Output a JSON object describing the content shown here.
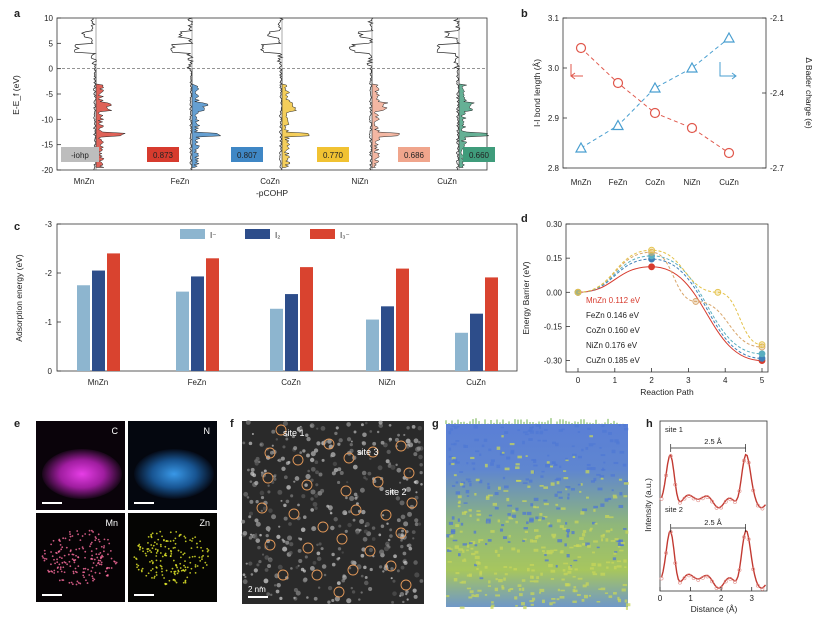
{
  "panel_labels": {
    "a": "a",
    "b": "b",
    "c": "c",
    "d": "d",
    "e": "e",
    "f": "f",
    "g": "g",
    "h": "h"
  },
  "colors": {
    "MnZn": "#d73b2e",
    "FeZn": "#3f87c5",
    "CoZn": "#f1c232",
    "NiZn": "#f0a58c",
    "CuZn": "#3f9c7b",
    "iohp_box": "#bdbdbd",
    "bond": "#e0574b",
    "bader": "#4a9fd0",
    "I_minus": "#8db5cf",
    "I2": "#2d4d8a",
    "I3": "#d9432f"
  },
  "chart_data": [
    {
      "id": "a",
      "type": "line",
      "ylabel": "E-E_f (eV)",
      "xlabel": "-pCOHP",
      "yticks": [
        "10",
        "5",
        "0",
        "-5",
        "-10",
        "-15",
        "-20"
      ],
      "ylim": [
        -20,
        10
      ],
      "categories": [
        "MnZn",
        "FeZn",
        "CoZn",
        "NiZn",
        "CuZn"
      ],
      "series": [
        {
          "name": "MnZn",
          "value": "0.873"
        },
        {
          "name": "FeZn",
          "value": "0.807"
        },
        {
          "name": "CoZn",
          "value": "0.770"
        },
        {
          "name": "NiZn",
          "value": "0.686"
        },
        {
          "name": "CuZn",
          "value": "0.660"
        }
      ],
      "box_label": "-iohp"
    },
    {
      "id": "b",
      "type": "line",
      "categories": [
        "MnZn",
        "FeZn",
        "CoZn",
        "NiZn",
        "CuZn"
      ],
      "ylabel": "I-I bond length (Å)",
      "ylabel_right": "Δ Bader charge (e)",
      "ylim": [
        2.8,
        3.1
      ],
      "ylim_right": [
        -2.7,
        -2.1
      ],
      "yticks": [
        "3.1",
        "3.0",
        "2.9",
        "2.8"
      ],
      "yticks_right": [
        "-2.1",
        "-2.4",
        "-2.7"
      ],
      "series": [
        {
          "values": [
            3.04,
            2.97,
            2.91,
            2.88,
            2.83
          ]
        },
        {
          "values": [
            -2.62,
            -2.53,
            -2.38,
            -2.3,
            -2.18
          ]
        }
      ]
    },
    {
      "id": "c",
      "type": "bar",
      "ylabel": "Adsorption energy (eV)",
      "categories": [
        "MnZn",
        "FeZn",
        "CoZn",
        "NiZn",
        "CuZn"
      ],
      "yticks": [
        "-3",
        "-2",
        "-1",
        "0"
      ],
      "ylim": [
        0,
        -3
      ],
      "series": [
        {
          "name": "I⁻",
          "values": [
            -1.75,
            -1.62,
            -1.27,
            -1.05,
            -0.78
          ]
        },
        {
          "name": "I₂",
          "values": [
            -2.05,
            -1.93,
            -1.57,
            -1.32,
            -1.17
          ]
        },
        {
          "name": "I₃⁻",
          "values": [
            -2.4,
            -2.3,
            -2.12,
            -2.09,
            -1.91
          ]
        }
      ]
    },
    {
      "id": "d",
      "type": "line",
      "xlabel": "Reaction Path",
      "ylabel": "Energy Barrier (eV)",
      "xticks": [
        "0",
        "1",
        "2",
        "3",
        "4",
        "5"
      ],
      "yticks": [
        "0.30",
        "0.15",
        "0.00",
        "-0.15",
        "-0.30"
      ],
      "ylim": [
        -0.35,
        0.3
      ],
      "series": [
        {
          "name": "MnZn",
          "label": "MnZn  0.112 eV",
          "points": [
            [
              0,
              0
            ],
            [
              2,
              0.112
            ],
            [
              5,
              -0.3
            ]
          ]
        },
        {
          "name": "FeZn",
          "label": "FeZn  0.146 eV",
          "points": [
            [
              0,
              0
            ],
            [
              2,
              0.146
            ],
            [
              5,
              -0.29
            ]
          ]
        },
        {
          "name": "CoZn",
          "label": "CoZn  0.160 eV",
          "points": [
            [
              0,
              0
            ],
            [
              2,
              0.16
            ],
            [
              5,
              -0.27
            ]
          ]
        },
        {
          "name": "NiZn",
          "label": "NiZn  0.176 eV",
          "points": [
            [
              0,
              0
            ],
            [
              2,
              0.176
            ],
            [
              3.2,
              -0.04
            ],
            [
              5,
              -0.24
            ]
          ]
        },
        {
          "name": "CuZn",
          "label": "CuZn  0.185 eV",
          "points": [
            [
              0,
              0
            ],
            [
              2,
              0.185
            ],
            [
              3.8,
              0.0
            ],
            [
              5,
              -0.23
            ]
          ]
        }
      ]
    },
    {
      "id": "h",
      "type": "line",
      "xlabel": "Distance (Å)",
      "ylabel": "Intensity (a.u.)",
      "xticks": [
        "0",
        "1",
        "2",
        "3"
      ],
      "xlim": [
        0,
        3.5
      ],
      "profiles": [
        {
          "name": "site 1",
          "spacing": "2.5 Å"
        },
        {
          "name": "site 2",
          "spacing": "2.5 Å"
        }
      ]
    }
  ],
  "panel_e": {
    "labels": [
      "C",
      "N",
      "Mn",
      "Zn"
    ]
  },
  "panel_f": {
    "sites": [
      "site 1",
      "site 3",
      "site 2"
    ],
    "scale": "2 nm"
  }
}
